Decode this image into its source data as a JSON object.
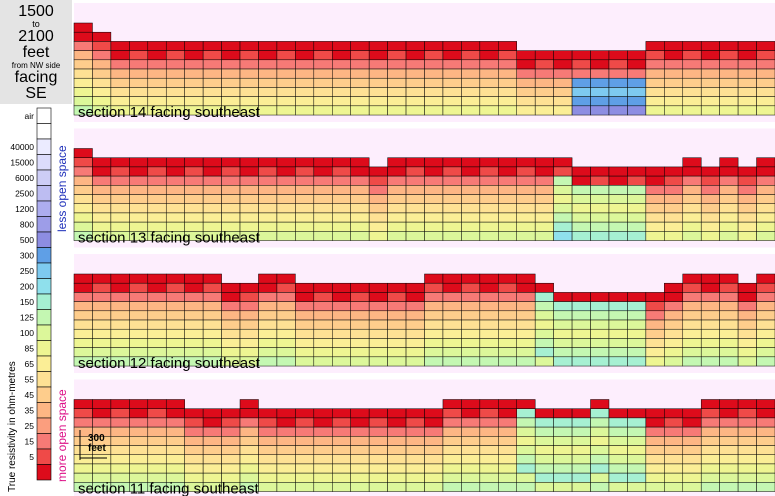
{
  "title": {
    "range_start": "1500",
    "range_to": "to",
    "range_end": "2100",
    "unit": "feet",
    "from": "from NW side",
    "facing": "facing",
    "direction": "SE"
  },
  "legend": {
    "axis_label": "True resistivity in ohm-metres",
    "less_label": "less open space",
    "more_label": "more open space",
    "less_color": "#2233bb",
    "more_color": "#dd1188",
    "bins": [
      {
        "label": "air",
        "color": "#ffffff"
      },
      {
        "label": "",
        "color": "#ffffff"
      },
      {
        "label": "40000",
        "color": "#ebebff"
      },
      {
        "label": "15000",
        "color": "#dcdcfb"
      },
      {
        "label": "6000",
        "color": "#cdcdf6"
      },
      {
        "label": "2500",
        "color": "#bdbdf2"
      },
      {
        "label": "1200",
        "color": "#adadef"
      },
      {
        "label": "800",
        "color": "#9d9de8"
      },
      {
        "label": "500",
        "color": "#8d8de2"
      },
      {
        "label": "300",
        "color": "#5f9fe6"
      },
      {
        "label": "250",
        "color": "#7ecaf0"
      },
      {
        "label": "200",
        "color": "#8fe0ec"
      },
      {
        "label": "150",
        "color": "#a6f0d2"
      },
      {
        "label": "125",
        "color": "#c4f7b2"
      },
      {
        "label": "100",
        "color": "#dcf79a"
      },
      {
        "label": "85",
        "color": "#eef592"
      },
      {
        "label": "65",
        "color": "#fbee96"
      },
      {
        "label": "55",
        "color": "#fee194"
      },
      {
        "label": "45",
        "color": "#fecd8c"
      },
      {
        "label": "35",
        "color": "#fdb684"
      },
      {
        "label": "25",
        "color": "#fb9e7e"
      },
      {
        "label": "15",
        "color": "#f77a76"
      },
      {
        "label": "5",
        "color": "#ef4a48"
      },
      {
        "label": "",
        "color": "#dd0b1b"
      }
    ]
  },
  "scale_bar": {
    "value": "300",
    "unit": "feet"
  },
  "panel_background": "#fdeefd",
  "chart_data": {
    "type": "heatmap",
    "columns": 38,
    "sections": [
      {
        "label": "section 14  facing southeast",
        "base_class": 10,
        "row_fade": 0.72,
        "tops": [
          0,
          1,
          2,
          2,
          2,
          2,
          2,
          2,
          2,
          2,
          2,
          2,
          2,
          2,
          2,
          2,
          2,
          2,
          2,
          2,
          2,
          2,
          2,
          2,
          3,
          3,
          3,
          3,
          3,
          3,
          3,
          2,
          2,
          2,
          2,
          2,
          2,
          2
        ],
        "holes": [
          {
            "x0": 27,
            "x1": 30,
            "y0": 3,
            "y1": 7,
            "depth": 10
          }
        ]
      },
      {
        "label": "section 13  facing southeast",
        "base_class": 10,
        "row_fade": 0.72,
        "tops": [
          0,
          1,
          1,
          1,
          1,
          1,
          1,
          1,
          1,
          1,
          1,
          1,
          1,
          1,
          1,
          1,
          2,
          1,
          1,
          1,
          1,
          1,
          1,
          1,
          1,
          1,
          1,
          2,
          2,
          2,
          2,
          2,
          2,
          1,
          2,
          1,
          2,
          1
        ],
        "holes": [
          {
            "x0": 26,
            "x1": 30,
            "y0": 2,
            "y1": 8,
            "depth": 15
          }
        ]
      },
      {
        "label": "section 12  facing southeast",
        "base_class": 10,
        "row_fade": 0.72,
        "tops": [
          0,
          0,
          0,
          0,
          0,
          0,
          0,
          0,
          1,
          1,
          0,
          0,
          1,
          1,
          1,
          1,
          1,
          1,
          1,
          0,
          0,
          0,
          0,
          0,
          0,
          1,
          2,
          2,
          2,
          2,
          2,
          2,
          1,
          0,
          0,
          0,
          1,
          0
        ],
        "holes": [
          {
            "x0": 25,
            "x1": 30,
            "y0": 1,
            "y1": 7,
            "depth": 15
          }
        ]
      },
      {
        "label": "section 11  facing southeast",
        "base_class": 10,
        "row_fade": 0.72,
        "tops": [
          0,
          0,
          0,
          0,
          0,
          0,
          1,
          1,
          1,
          0,
          1,
          1,
          1,
          1,
          1,
          1,
          1,
          1,
          1,
          1,
          0,
          0,
          0,
          0,
          0,
          1,
          1,
          1,
          0,
          1,
          1,
          1,
          1,
          1,
          0,
          0,
          0,
          0
        ],
        "holes": [
          {
            "x0": 24,
            "x1": 30,
            "y0": 1,
            "y1": 7,
            "depth": 15
          }
        ]
      }
    ]
  }
}
